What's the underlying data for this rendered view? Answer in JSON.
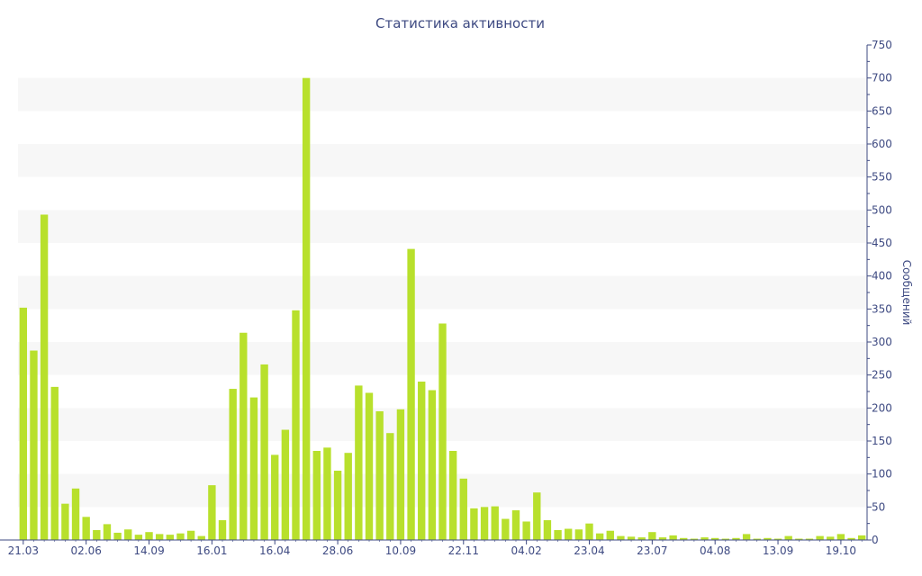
{
  "chart_data": {
    "type": "bar",
    "title": "Статистика активности",
    "xlabel": "",
    "ylabel": "Сообщений",
    "ylim": [
      0,
      750
    ],
    "y_axis_side": "right",
    "y_ticks": [
      0,
      50,
      100,
      150,
      200,
      250,
      300,
      350,
      400,
      450,
      500,
      550,
      600,
      650,
      700,
      750
    ],
    "x_tick_labels": [
      "21.03",
      "02.06",
      "14.09",
      "16.01",
      "16.04",
      "28.06",
      "10.09",
      "22.11",
      "04.02",
      "23.04",
      "23.07",
      "04.08",
      "13.09",
      "19.10"
    ],
    "x_tick_bar_index": [
      0,
      6,
      12,
      18,
      24,
      30,
      36,
      42,
      48,
      54,
      60,
      66,
      72,
      78
    ],
    "values": [
      352,
      287,
      493,
      232,
      55,
      78,
      35,
      15,
      24,
      11,
      16,
      8,
      12,
      9,
      8,
      10,
      14,
      6,
      83,
      30,
      229,
      314,
      216,
      266,
      129,
      167,
      348,
      700,
      135,
      140,
      105,
      132,
      234,
      223,
      195,
      162,
      198,
      441,
      240,
      227,
      328,
      135,
      93,
      48,
      50,
      51,
      32,
      45,
      28,
      72,
      30,
      15,
      17,
      16,
      25,
      10,
      14,
      6,
      5,
      4,
      12,
      4,
      7,
      3,
      2,
      4,
      3,
      2,
      3,
      9,
      2,
      3,
      2,
      6,
      2,
      2,
      6,
      5,
      9,
      3,
      7
    ],
    "bar_color": "#b8e02c",
    "band_color": "#f7f7f7",
    "axis_color": "#3e4a82",
    "grid": "alternating bands",
    "legend": "none"
  }
}
